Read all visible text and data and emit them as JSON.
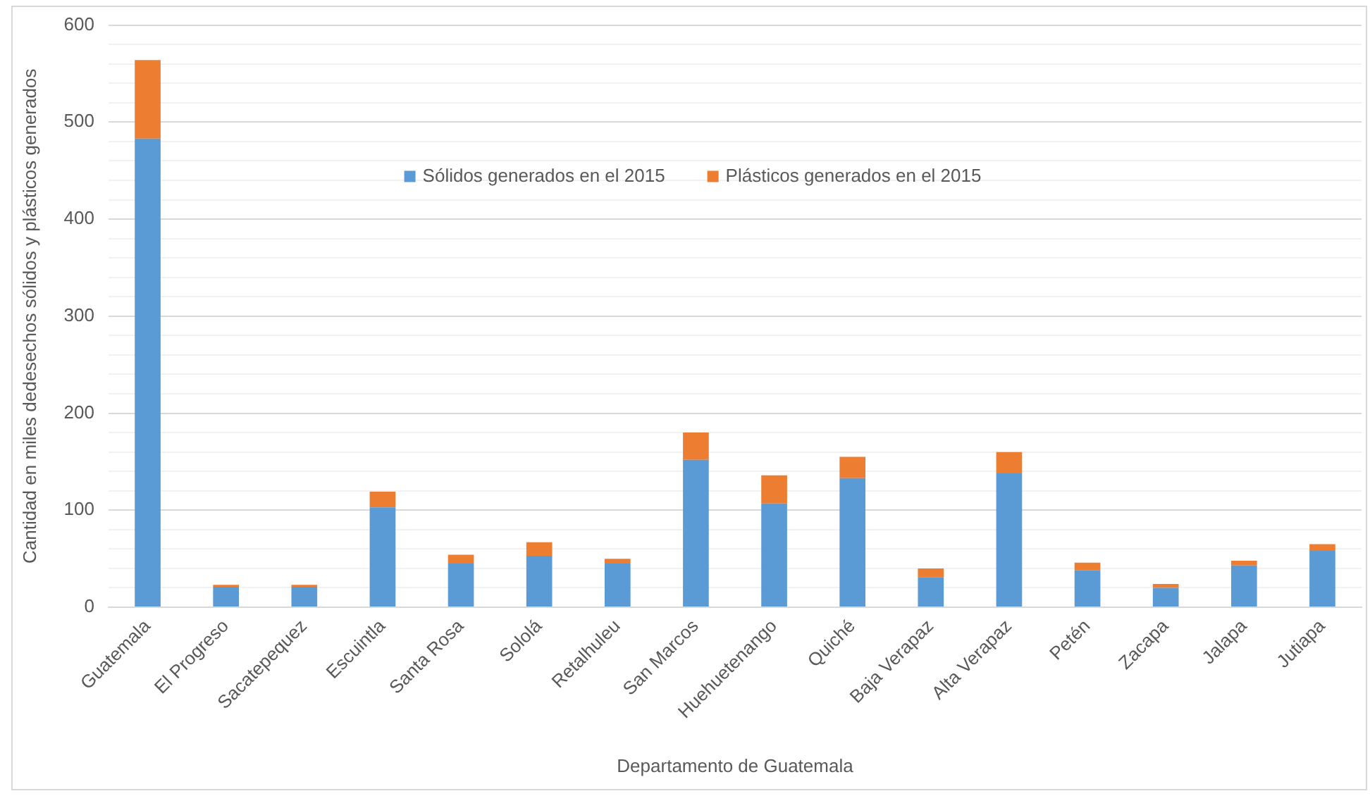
{
  "chart_data": {
    "type": "bar",
    "xlabel": "Departamento de Guatemala",
    "ylabel": "Cantidad en miles dedesechos sólidos y plásticos generados",
    "categories": [
      "Guatemala",
      "El Progreso",
      "Sacatepequez",
      "Escuintla",
      "Santa Rosa",
      "Sololá",
      "Retalhuleu",
      "San Marcos",
      "Huehuetenango",
      "Quiché",
      "Baja Verapaz",
      "Alta Verapaz",
      "Petén",
      "Zacapa",
      "Jalapa",
      "Jutiapa"
    ],
    "series": [
      {
        "name": "Sólidos generados en el 2015",
        "color": "#5b9bd5",
        "values": [
          483,
          21,
          21,
          103,
          45,
          53,
          45,
          152,
          107,
          133,
          31,
          138,
          38,
          20,
          43,
          58
        ]
      },
      {
        "name": "Plásticos generados en el 2015",
        "color": "#ed7d31",
        "values": [
          81,
          2,
          2,
          16,
          9,
          14,
          5,
          28,
          29,
          22,
          9,
          22,
          8,
          4,
          5,
          7
        ]
      }
    ],
    "stacked": true,
    "ylim": [
      0,
      600
    ],
    "yticks": [
      0,
      {
        "value": 20,
        "label": null
      },
      {
        "value": 40,
        "label": null
      },
      {
        "value": 60,
        "label": null
      },
      {
        "value": 80,
        "label": null
      },
      100,
      {
        "value": 120,
        "label": null
      },
      {
        "value": 140,
        "label": null
      },
      {
        "value": 160,
        "label": null
      },
      {
        "value": 180,
        "label": null
      },
      200,
      {
        "value": 220,
        "label": null
      },
      {
        "value": 240,
        "label": null
      },
      {
        "value": 260,
        "label": null
      },
      {
        "value": 280,
        "label": null
      },
      300,
      {
        "value": 320,
        "label": null
      },
      {
        "value": 340,
        "label": null
      },
      {
        "value": 360,
        "label": null
      },
      {
        "value": 380,
        "label": null
      },
      400,
      {
        "value": 420,
        "label": null
      },
      {
        "value": 440,
        "label": null
      },
      {
        "value": 460,
        "label": null
      },
      {
        "value": 480,
        "label": null
      },
      500,
      {
        "value": 520,
        "label": null
      },
      {
        "value": 540,
        "label": null
      },
      {
        "value": 560,
        "label": null
      },
      {
        "value": 580,
        "label": null
      },
      600
    ],
    "grid": "y",
    "legend": "top"
  }
}
